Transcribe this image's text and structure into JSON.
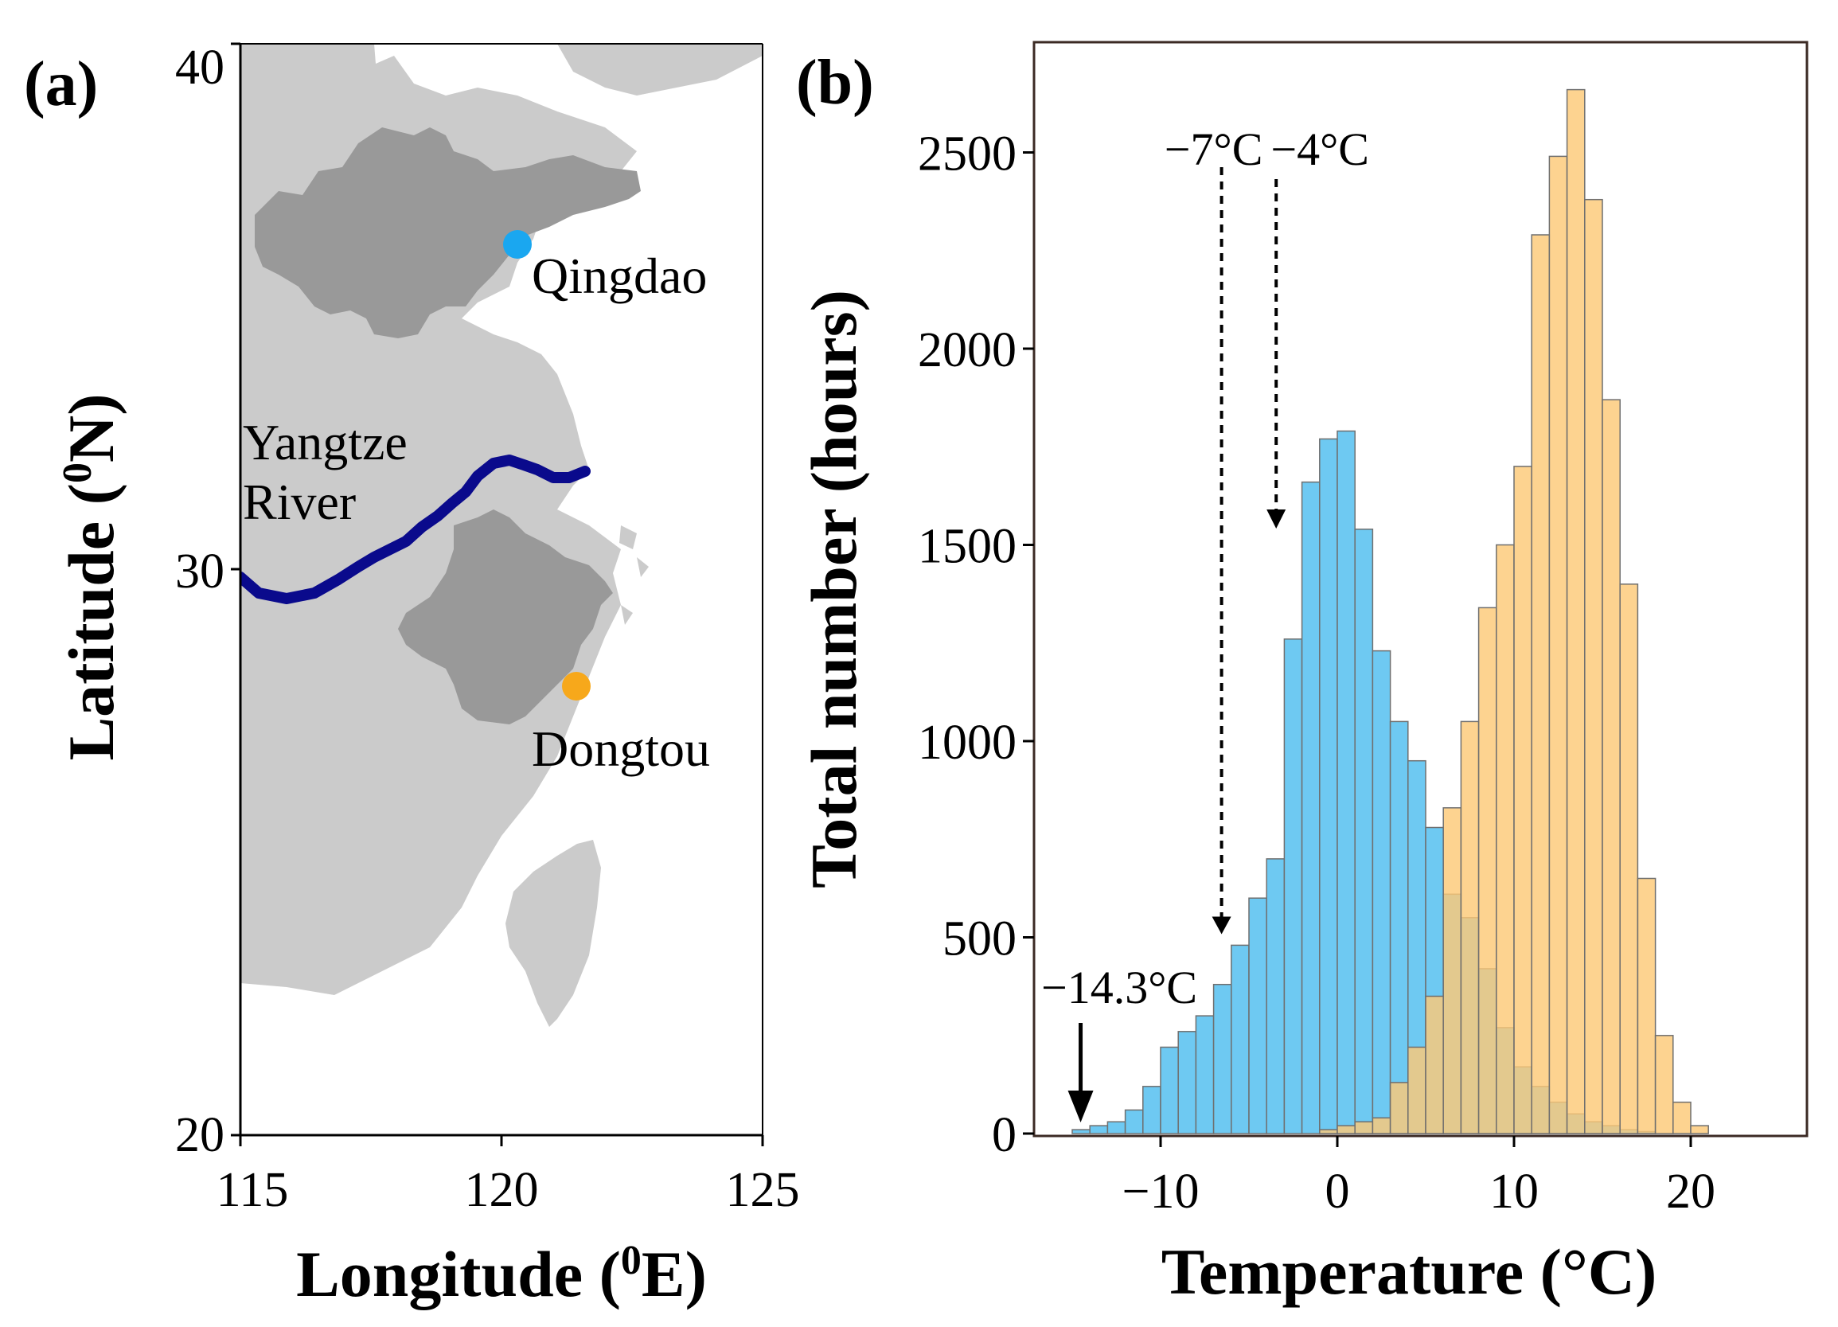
{
  "panel_a": {
    "label": "(a)",
    "xlabel_main": "Longitude (",
    "xlabel_sup": "0",
    "xlabel_unit": "E)",
    "ylabel_main": "Latitude (",
    "ylabel_sup": "0",
    "ylabel_unit": "N)",
    "xticks": [
      "115",
      "120",
      "125"
    ],
    "yticks": [
      "40",
      "30",
      "20"
    ],
    "sites": [
      {
        "name": "Qingdao",
        "color": "#1aa7f0"
      },
      {
        "name": "Dongtou",
        "color": "#f7a81b"
      }
    ],
    "river_label_line1": "Yangtze",
    "river_label_line2": "River",
    "colors": {
      "land": "#cbcbcb",
      "province": "#999999",
      "river": "#0a0a8c"
    }
  },
  "chart_data": {
    "type": "bar",
    "label": "(b)",
    "xlabel": "Temperature (°C)",
    "ylabel": "Total number (hours)",
    "xlim": [
      -17,
      27
    ],
    "ylim": [
      0,
      2700
    ],
    "xticks": [
      "−10",
      "0",
      "10",
      "20"
    ],
    "yticks": [
      "0",
      "500",
      "1000",
      "1500",
      "2000",
      "2500"
    ],
    "bin_width": 1,
    "series": [
      {
        "name": "cold (blue)",
        "color": "#6ec9f2",
        "bin_starts": [
          -15,
          -14,
          -13,
          -12,
          -11,
          -10,
          -9,
          -8,
          -7,
          -6,
          -5,
          -4,
          -3,
          -2,
          -1,
          0,
          1,
          2,
          3,
          4,
          5,
          6,
          7,
          8,
          9,
          10,
          11,
          12,
          13,
          14,
          15,
          16,
          17
        ],
        "values": [
          10,
          20,
          30,
          60,
          120,
          220,
          260,
          300,
          380,
          480,
          600,
          700,
          1260,
          1660,
          1770,
          1790,
          1540,
          1230,
          1050,
          950,
          780,
          610,
          550,
          420,
          270,
          170,
          120,
          80,
          50,
          30,
          20,
          10,
          5
        ]
      },
      {
        "name": "warm (orange)",
        "color": "#fcc977",
        "bin_starts": [
          -1,
          0,
          1,
          2,
          3,
          4,
          5,
          6,
          7,
          8,
          9,
          10,
          11,
          12,
          13,
          14,
          15,
          16,
          17,
          18,
          19,
          20
        ],
        "values": [
          10,
          20,
          30,
          40,
          130,
          220,
          350,
          830,
          1050,
          1340,
          1500,
          1700,
          2290,
          2490,
          2660,
          2380,
          1870,
          1400,
          650,
          250,
          80,
          20
        ]
      }
    ],
    "annotations": [
      {
        "text": "−7°C",
        "x": -7,
        "y": 500,
        "style": "dashed"
      },
      {
        "text": "−4°C",
        "x": -4,
        "y": 1500,
        "style": "dashed"
      },
      {
        "text": "−14.3°C",
        "x": -14.3,
        "y": 0,
        "style": "solid"
      }
    ]
  }
}
